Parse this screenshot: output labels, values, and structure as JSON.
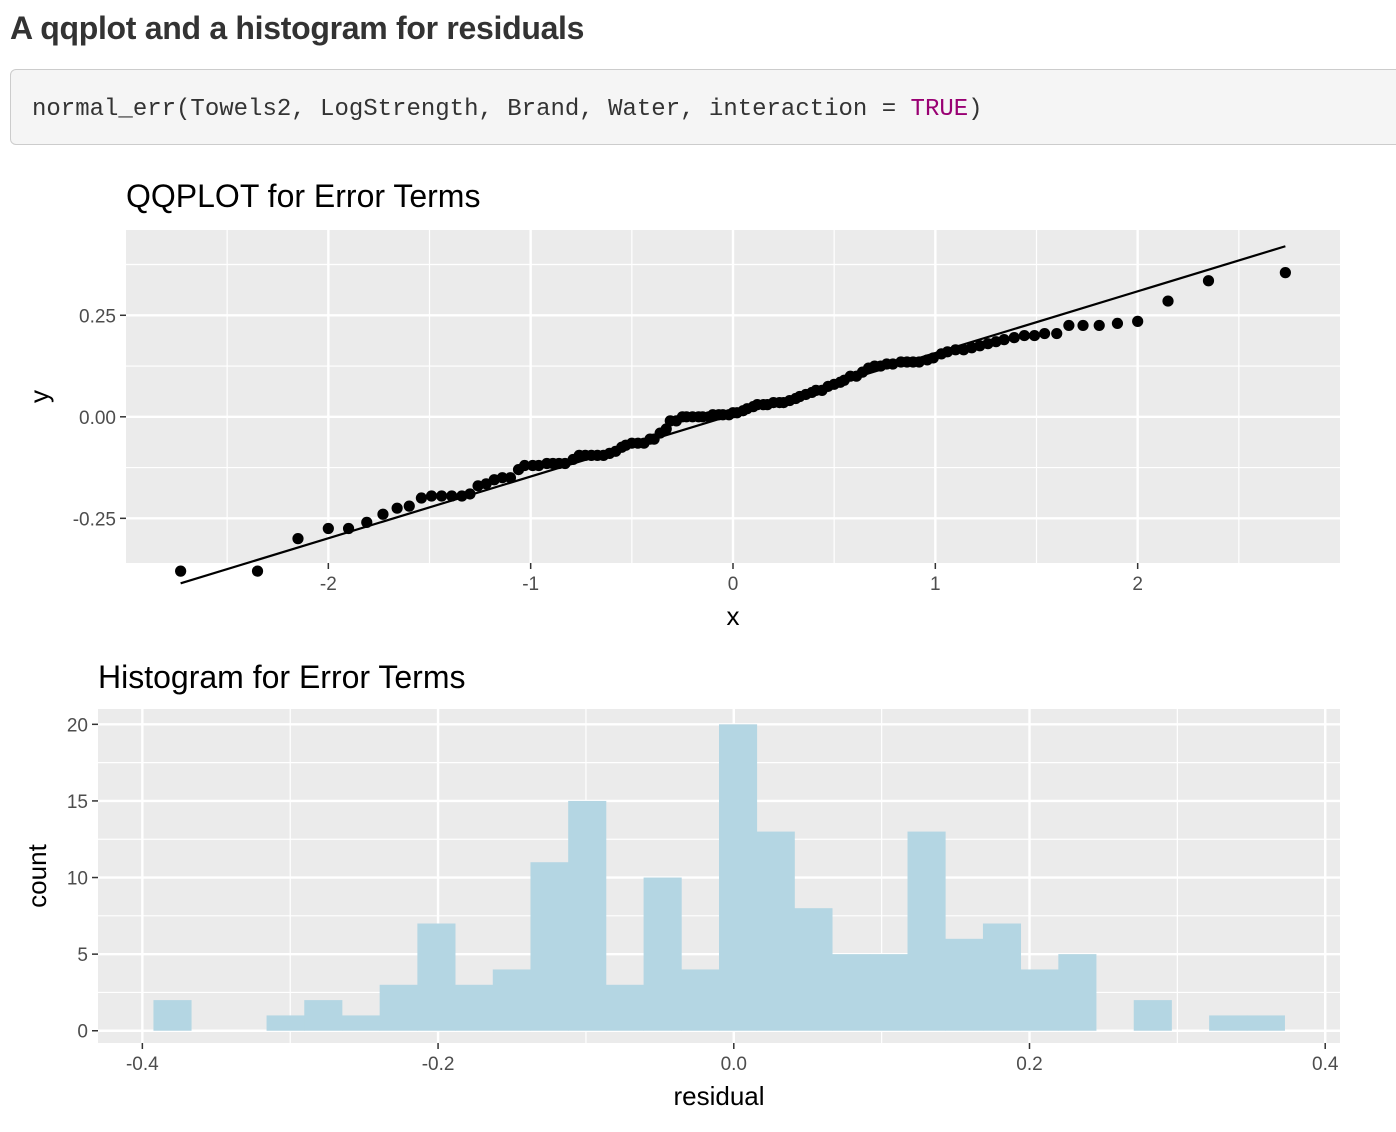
{
  "section": {
    "title": "A qqplot and a histogram for residuals"
  },
  "code": {
    "prefix": "normal_err(Towels2, LogStrength, Brand, Water, interaction = ",
    "keyword": "TRUE",
    "suffix": ")"
  },
  "chart_data": [
    {
      "type": "scatter",
      "title": "QQPLOT for Error Terms",
      "xlabel": "x",
      "ylabel": "y",
      "xlim": [
        -3.0,
        3.0
      ],
      "ylim": [
        -0.36,
        0.46
      ],
      "xticks": [
        -2,
        -1,
        0,
        1,
        2
      ],
      "xtick_labels": [
        "-2",
        "-1",
        "0",
        "1",
        "2"
      ],
      "yticks": [
        -0.25,
        0.0,
        0.25
      ],
      "ytick_labels": [
        "-0.25",
        "0.00",
        "0.25"
      ],
      "grid": true,
      "legend": "none",
      "colors": {
        "panel": "#ebebeb",
        "grid": "#ffffff",
        "point": "#000000",
        "line": "#000000"
      },
      "reference_line": {
        "x": [
          -2.73,
          2.73
        ],
        "y": [
          -0.41,
          0.42
        ]
      },
      "points": {
        "x": [
          -2.73,
          -2.35,
          -2.15,
          -2.0,
          -1.9,
          -1.81,
          -1.73,
          -1.66,
          -1.6,
          -1.54,
          -1.49,
          -1.44,
          -1.39,
          -1.34,
          -1.3,
          -1.26,
          -1.22,
          -1.18,
          -1.14,
          -1.1,
          -1.06,
          -1.03,
          -0.99,
          -0.96,
          -0.92,
          -0.89,
          -0.86,
          -0.83,
          -0.79,
          -0.76,
          -0.73,
          -0.7,
          -0.67,
          -0.64,
          -0.61,
          -0.58,
          -0.55,
          -0.53,
          -0.5,
          -0.47,
          -0.44,
          -0.41,
          -0.39,
          -0.36,
          -0.33,
          -0.31,
          -0.28,
          -0.25,
          -0.23,
          -0.2,
          -0.17,
          -0.15,
          -0.12,
          -0.1,
          -0.07,
          -0.05,
          -0.02,
          0.0,
          0.02,
          0.05,
          0.07,
          0.1,
          0.12,
          0.15,
          0.17,
          0.2,
          0.23,
          0.25,
          0.28,
          0.31,
          0.33,
          0.36,
          0.39,
          0.41,
          0.44,
          0.47,
          0.5,
          0.53,
          0.55,
          0.58,
          0.61,
          0.64,
          0.67,
          0.7,
          0.73,
          0.76,
          0.79,
          0.83,
          0.86,
          0.89,
          0.92,
          0.96,
          0.99,
          1.03,
          1.06,
          1.1,
          1.14,
          1.18,
          1.22,
          1.26,
          1.3,
          1.34,
          1.39,
          1.44,
          1.49,
          1.54,
          1.6,
          1.66,
          1.73,
          1.81,
          1.9,
          2.0,
          2.15,
          2.35,
          2.73
        ],
        "y": [
          -0.38,
          -0.38,
          -0.3,
          -0.275,
          -0.275,
          -0.26,
          -0.24,
          -0.225,
          -0.22,
          -0.2,
          -0.195,
          -0.195,
          -0.195,
          -0.195,
          -0.19,
          -0.17,
          -0.165,
          -0.155,
          -0.15,
          -0.15,
          -0.13,
          -0.12,
          -0.12,
          -0.12,
          -0.115,
          -0.115,
          -0.115,
          -0.115,
          -0.105,
          -0.095,
          -0.095,
          -0.095,
          -0.095,
          -0.095,
          -0.09,
          -0.085,
          -0.075,
          -0.07,
          -0.065,
          -0.065,
          -0.065,
          -0.055,
          -0.055,
          -0.04,
          -0.03,
          -0.01,
          -0.01,
          0.0,
          0.0,
          0.0,
          0.0,
          0.0,
          0.0,
          0.005,
          0.005,
          0.005,
          0.005,
          0.01,
          0.01,
          0.015,
          0.02,
          0.025,
          0.03,
          0.03,
          0.03,
          0.035,
          0.035,
          0.035,
          0.04,
          0.045,
          0.05,
          0.055,
          0.06,
          0.065,
          0.065,
          0.075,
          0.08,
          0.085,
          0.09,
          0.1,
          0.1,
          0.11,
          0.12,
          0.125,
          0.125,
          0.13,
          0.13,
          0.135,
          0.135,
          0.135,
          0.135,
          0.14,
          0.145,
          0.155,
          0.16,
          0.165,
          0.165,
          0.17,
          0.175,
          0.18,
          0.185,
          0.19,
          0.195,
          0.2,
          0.2,
          0.205,
          0.205,
          0.225,
          0.225,
          0.225,
          0.23,
          0.235,
          0.285,
          0.335,
          0.355
        ]
      }
    },
    {
      "type": "bar",
      "title": "Histogram for Error Terms",
      "xlabel": "residual",
      "ylabel": "count",
      "xlim": [
        -0.43,
        0.41
      ],
      "ylim": [
        -0.8,
        21.0
      ],
      "xticks": [
        -0.4,
        -0.2,
        0.0,
        0.2,
        0.4
      ],
      "xtick_labels": [
        "-0.4",
        "-0.2",
        "0.0",
        "0.2",
        "0.4"
      ],
      "yticks": [
        0,
        5,
        10,
        15,
        20
      ],
      "ytick_labels": [
        "0",
        "5",
        "10",
        "15",
        "20"
      ],
      "grid": true,
      "legend": "none",
      "colors": {
        "panel": "#ebebeb",
        "grid": "#ffffff",
        "bar": "#b4d6e3"
      },
      "bin_start": -0.3925,
      "bin_width": 0.0255,
      "counts": [
        2,
        0,
        0,
        1,
        2,
        1,
        3,
        7,
        3,
        4,
        11,
        15,
        3,
        10,
        4,
        20,
        13,
        8,
        5,
        5,
        13,
        6,
        7,
        4,
        5,
        0,
        2,
        0,
        1,
        1
      ]
    }
  ]
}
